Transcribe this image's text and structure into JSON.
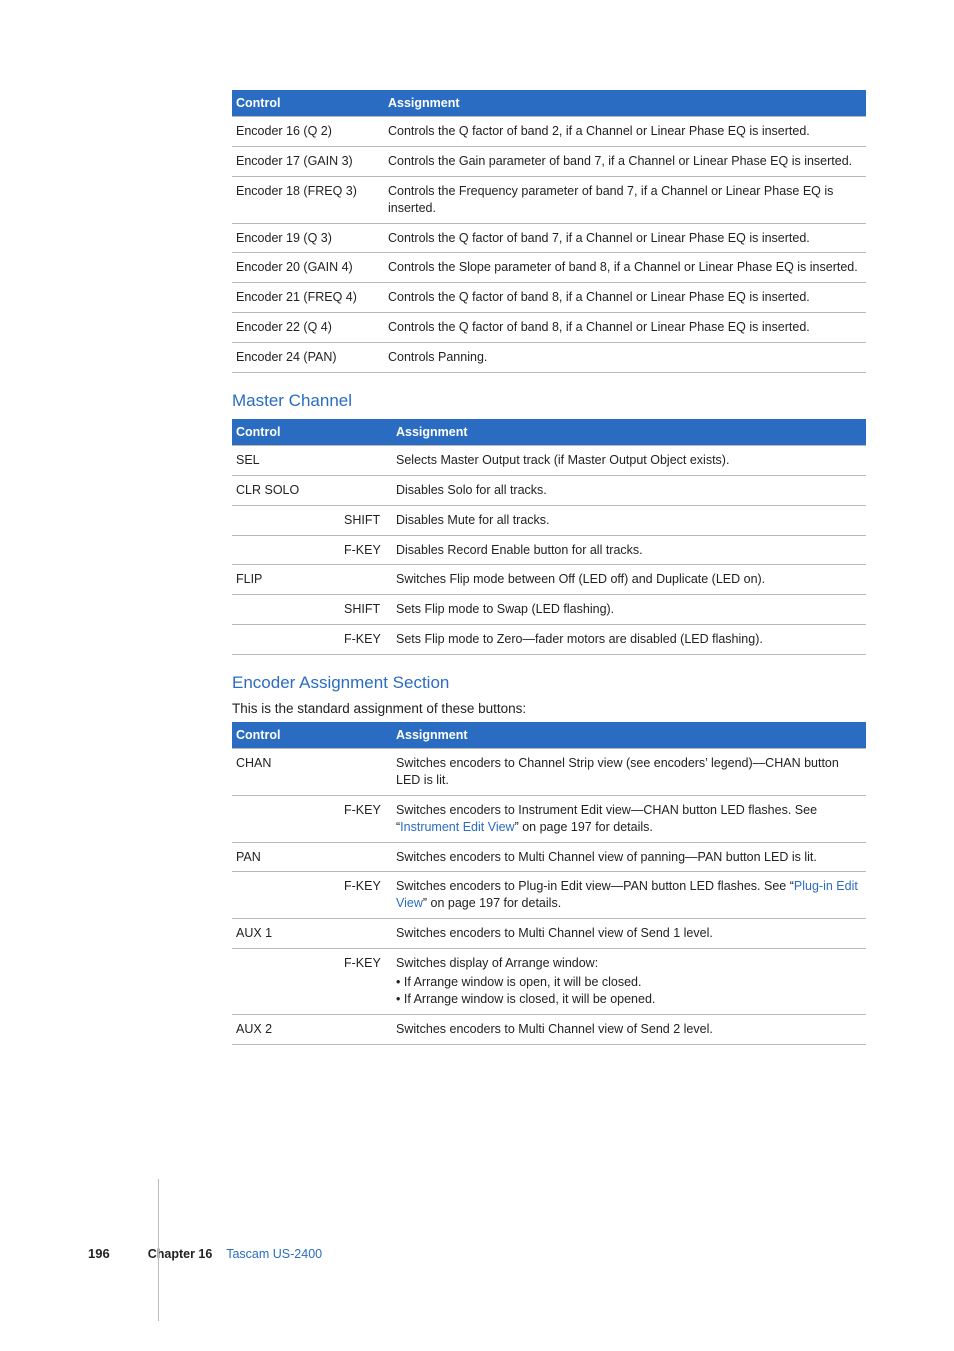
{
  "colors": {
    "header_bg": "#2a6cc2",
    "header_text": "#ffffff",
    "border": "#b8b8b8",
    "link": "#2a6cc2",
    "section_title": "#2a6cc2",
    "body_text": "#222222"
  },
  "tables": {
    "t1": {
      "header": {
        "c1": "Control",
        "c2": "Assignment"
      },
      "rows": [
        {
          "c": "Encoder 16 (Q 2)",
          "a": "Controls the Q factor of band 2, if a Channel or Linear Phase EQ is inserted."
        },
        {
          "c": "Encoder 17 (GAIN 3)",
          "a": "Controls the Gain parameter of band 7, if a Channel or Linear Phase EQ is inserted."
        },
        {
          "c": "Encoder 18 (FREQ 3)",
          "a": "Controls the Frequency parameter of band 7, if a Channel or Linear Phase EQ is inserted."
        },
        {
          "c": "Encoder 19 (Q 3)",
          "a": "Controls the Q factor of band 7, if a Channel or Linear Phase EQ is inserted."
        },
        {
          "c": "Encoder 20 (GAIN 4)",
          "a": "Controls the Slope parameter of band 8, if a Channel or Linear Phase EQ is inserted."
        },
        {
          "c": "Encoder 21 (FREQ 4)",
          "a": "Controls the Q factor of band 8, if a Channel or Linear Phase EQ is inserted."
        },
        {
          "c": "Encoder 22 (Q 4)",
          "a": "Controls the Q factor of band 8, if a Channel or Linear Phase EQ is inserted."
        },
        {
          "c": "Encoder 24 (PAN)",
          "a": "Controls Panning."
        }
      ]
    },
    "t2": {
      "title": "Master Channel",
      "header": {
        "c1": "Control",
        "c2": "Assignment"
      },
      "rows": [
        {
          "c": "SEL",
          "m": "",
          "a": "Selects Master Output track (if Master Output Object exists)."
        },
        {
          "c": "CLR SOLO",
          "m": "",
          "a": "Disables Solo for all tracks."
        },
        {
          "c": "",
          "m": "SHIFT",
          "a": "Disables Mute for all tracks."
        },
        {
          "c": "",
          "m": "F-KEY",
          "a": "Disables Record Enable button for all tracks."
        },
        {
          "c": "FLIP",
          "m": "",
          "a": "Switches Flip mode between Off (LED off) and Duplicate (LED on)."
        },
        {
          "c": "",
          "m": "SHIFT",
          "a": "Sets Flip mode to Swap (LED flashing)."
        },
        {
          "c": "",
          "m": "F-KEY",
          "a": "Sets Flip mode to Zero—fader motors are disabled (LED flashing)."
        }
      ]
    },
    "t3": {
      "title": "Encoder Assignment Section",
      "intro": "This is the standard assignment of these buttons:",
      "header": {
        "c1": "Control",
        "c2": "Assignment"
      },
      "rows": [
        {
          "c": "CHAN",
          "m": "",
          "a_pre": "Switches encoders to Channel Strip view (see encoders’ legend)—CHAN button LED is lit.",
          "link": "",
          "a_post": ""
        },
        {
          "c": "",
          "m": "F-KEY",
          "a_pre": "Switches encoders to Instrument Edit view—CHAN button LED flashes. See “",
          "link": "Instrument Edit View",
          "a_post": "” on page 197 for details."
        },
        {
          "c": "PAN",
          "m": "",
          "a_pre": "Switches encoders to Multi Channel view of panning—PAN button LED is lit.",
          "link": "",
          "a_post": ""
        },
        {
          "c": "",
          "m": "F-KEY",
          "a_pre": "Switches encoders to Plug-in Edit view—PAN button LED flashes. See “",
          "link": "Plug-in Edit View",
          "a_post": "” on page 197 for details."
        },
        {
          "c": "AUX 1",
          "m": "",
          "a_pre": "Switches encoders to Multi Channel view of Send 1 level.",
          "link": "",
          "a_post": ""
        },
        {
          "c": "",
          "m": "F-KEY",
          "a_pre": "Switches display of Arrange window:",
          "link": "",
          "a_post": "",
          "bullets": [
            "If Arrange window is open, it will be closed.",
            "If Arrange window is closed, it will be opened."
          ]
        },
        {
          "c": "AUX 2",
          "m": "",
          "a_pre": "Switches encoders to Multi Channel view of Send 2 level.",
          "link": "",
          "a_post": ""
        }
      ]
    }
  },
  "footer": {
    "page": "196",
    "chapter_label": "Chapter 16",
    "chapter_title": "Tascam US-2400"
  }
}
